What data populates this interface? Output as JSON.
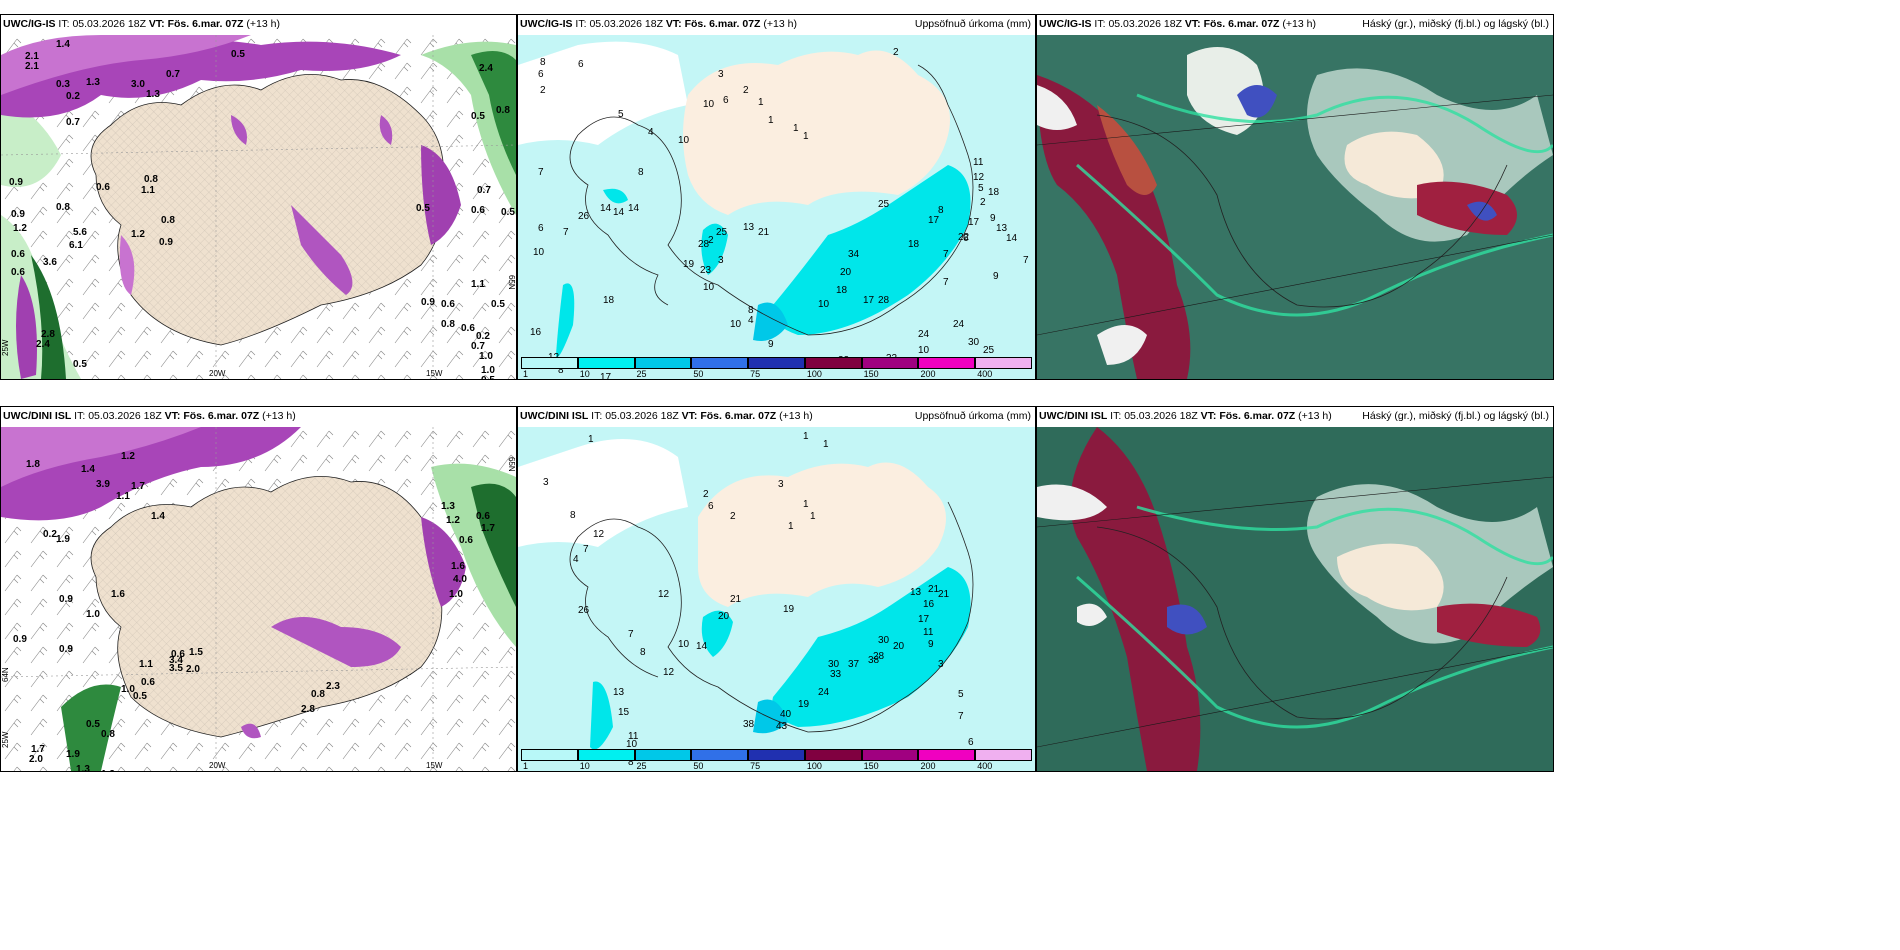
{
  "panels": [
    {
      "id": "a",
      "model": "UWC/IG-IS",
      "it_label": "IT:",
      "it": "05.03.2026 18Z",
      "vt_label": "VT:",
      "vt": "Fös. 6.mar. 07Z",
      "lead": "(+13 h)",
      "right": ""
    },
    {
      "id": "b",
      "model": "UWC/IG-IS",
      "it_label": "IT:",
      "it": "05.03.2026 18Z",
      "vt_label": "VT:",
      "vt": "Fös. 6.mar. 07Z",
      "lead": "(+13 h)",
      "right": "Uppsöfnuð úrkoma (mm)"
    },
    {
      "id": "c",
      "model": "UWC/IG-IS",
      "it_label": "IT:",
      "it": "05.03.2026 18Z",
      "vt_label": "VT:",
      "vt": "Fös. 6.mar. 07Z",
      "lead": "(+13 h)",
      "right": "Háský (gr.), miðský (fj.bl.) og lágský (bl.)"
    },
    {
      "id": "d",
      "model": "UWC/DINI ISL",
      "it_label": "IT:",
      "it": "05.03.2026 18Z",
      "vt_label": "VT:",
      "vt": "Fös. 6.mar. 07Z",
      "lead": "(+13 h)",
      "right": ""
    },
    {
      "id": "e",
      "model": "UWC/DINI ISL",
      "it_label": "IT:",
      "it": "05.03.2026 18Z",
      "vt_label": "VT:",
      "vt": "Fös. 6.mar. 07Z",
      "lead": "(+13 h)",
      "right": "Uppsöfnuð úrkoma (mm)"
    },
    {
      "id": "f",
      "model": "UWC/DINI ISL",
      "it_label": "IT:",
      "it": "05.03.2026 18Z",
      "vt_label": "VT:",
      "vt": "Fös. 6.mar. 07Z",
      "lead": "(+13 h)",
      "right": "Háský (gr.), miðský (fj.bl.) og lágský (bl.)"
    }
  ],
  "legend": {
    "ticks": [
      "1",
      "10",
      "25",
      "50",
      "75",
      "100",
      "150",
      "200",
      "400"
    ],
    "colors": [
      "#b8f8f8",
      "#00f0f0",
      "#00c8e8",
      "#3070e8",
      "#2030b0",
      "#800040",
      "#a00080",
      "#f000c0",
      "#f0b0f0"
    ]
  },
  "axes": {
    "lon_labels": [
      "20W",
      "15W"
    ],
    "lat_labels_a": [
      "25W",
      "65N"
    ],
    "lat_labels_d": [
      "25W",
      "64N",
      "65N"
    ]
  },
  "labels_a": [
    "2.1",
    "2.1",
    "1.4",
    "1.3",
    "0.3",
    "0.2",
    "3.0",
    "1.3",
    "0.7",
    "0.5",
    "2.4",
    "0.8",
    "0.9",
    "0.8",
    "1.1",
    "0.6",
    "0.9",
    "0.8",
    "0.8",
    "1.2",
    "0.6",
    "3.6",
    "6.1",
    "5.6",
    "1.2",
    "0.9",
    "0.6",
    "0.7",
    "0.5",
    "0.5",
    "1.1",
    "0.5",
    "0.2",
    "2.8",
    "2.4",
    "0.5",
    "0.9",
    "0.6",
    "0.8",
    "0.6",
    "0.7",
    "1.0",
    "1.0",
    "0.5",
    "0.6",
    "0.7",
    "0.5"
  ],
  "labels_b": [
    "2",
    "8",
    "6",
    "6",
    "2",
    "3",
    "2",
    "6",
    "10",
    "5",
    "4",
    "1",
    "1",
    "1",
    "10",
    "1",
    "7",
    "8",
    "14",
    "14",
    "14",
    "26",
    "6",
    "7",
    "10",
    "2",
    "3",
    "23",
    "25",
    "21",
    "13",
    "28",
    "16",
    "12",
    "8",
    "17",
    "18",
    "19",
    "10",
    "8",
    "10",
    "4",
    "9",
    "10",
    "18",
    "20",
    "34",
    "17",
    "28",
    "32",
    "31",
    "32",
    "18",
    "17",
    "8",
    "7",
    "7",
    "9",
    "24",
    "30",
    "25",
    "11",
    "12",
    "5",
    "2",
    "9",
    "13",
    "14",
    "17",
    "18",
    "22",
    "25",
    "24",
    "10",
    "7",
    "6"
  ],
  "labels_d": [
    "1.8",
    "1.2",
    "1.4",
    "3.9",
    "1.7",
    "1.1",
    "0.2",
    "1.9",
    "0.9",
    "0.9",
    "0.9",
    "1.6",
    "1.4",
    "1.0",
    "0.8",
    "2.3",
    "2.8",
    "0.6",
    "1.5",
    "2.0",
    "3.4",
    "3.5",
    "1.1",
    "0.6",
    "1.9",
    "1.7",
    "2.0",
    "1.3",
    "1.3",
    "0.5",
    "0.8",
    "1.0",
    "0.5",
    "1.3",
    "1.2",
    "0.6",
    "0.6",
    "1.7",
    "1.6",
    "4.0",
    "1.0"
  ],
  "labels_e": [
    "1",
    "3",
    "8",
    "12",
    "7",
    "4",
    "2",
    "6",
    "2",
    "1",
    "1",
    "3",
    "1",
    "1",
    "1",
    "12",
    "14",
    "21",
    "20",
    "19",
    "26",
    "7",
    "8",
    "10",
    "12",
    "13",
    "15",
    "11",
    "10",
    "9",
    "8",
    "38",
    "40",
    "43",
    "19",
    "24",
    "30",
    "33",
    "37",
    "38",
    "30",
    "28",
    "20",
    "17",
    "16",
    "21",
    "21",
    "13",
    "11",
    "9",
    "6",
    "7",
    "5",
    "3"
  ]
}
